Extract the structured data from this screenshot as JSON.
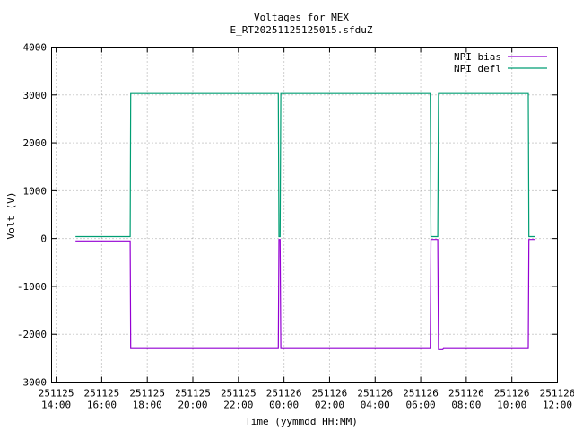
{
  "chart_data": {
    "type": "line",
    "title": "Voltages for MEX",
    "subtitle": "E_RT20251125125015.sfduZ",
    "xlabel": "Time (yymmdd HH:MM)",
    "ylabel": "Volt (V)",
    "x_unit": "hours since 251125 14:00",
    "xlim": [
      -0.2,
      22
    ],
    "ylim": [
      -3000,
      4000
    ],
    "grid": true,
    "legend_position": "top-right",
    "y_ticks": [
      "4000",
      "3000",
      "2000",
      "1000",
      "0",
      "-1000",
      "-2000",
      "-3000"
    ],
    "x_ticks": [
      {
        "date": "251125",
        "time": "14:00"
      },
      {
        "date": "251125",
        "time": "16:00"
      },
      {
        "date": "251125",
        "time": "18:00"
      },
      {
        "date": "251125",
        "time": "20:00"
      },
      {
        "date": "251125",
        "time": "22:00"
      },
      {
        "date": "251126",
        "time": "00:00"
      },
      {
        "date": "251126",
        "time": "02:00"
      },
      {
        "date": "251126",
        "time": "04:00"
      },
      {
        "date": "251126",
        "time": "06:00"
      },
      {
        "date": "251126",
        "time": "08:00"
      },
      {
        "date": "251126",
        "time": "10:00"
      },
      {
        "date": "251126",
        "time": "12:00"
      }
    ],
    "series": [
      {
        "name": "NPI bias",
        "color": "#9400d3",
        "x": [
          0.85,
          3.25,
          3.27,
          9.75,
          9.78,
          9.83,
          9.86,
          16.42,
          16.45,
          16.75,
          16.78,
          16.97,
          17.0,
          20.72,
          20.75,
          21.0
        ],
        "y": [
          -50,
          -50,
          -2300,
          -2300,
          -20,
          -20,
          -2300,
          -2300,
          -20,
          -20,
          -2320,
          -2320,
          -2300,
          -2300,
          -20,
          -20
        ]
      },
      {
        "name": "NPI defl",
        "color": "#009e73",
        "x": [
          0.85,
          3.25,
          3.27,
          9.75,
          9.78,
          9.83,
          9.86,
          16.42,
          16.45,
          16.75,
          16.78,
          16.97,
          17.0,
          20.72,
          20.75,
          21.0
        ],
        "y": [
          40,
          40,
          3030,
          3030,
          40,
          40,
          3030,
          3030,
          40,
          40,
          3030,
          3030,
          3030,
          3030,
          40,
          40
        ]
      }
    ]
  }
}
